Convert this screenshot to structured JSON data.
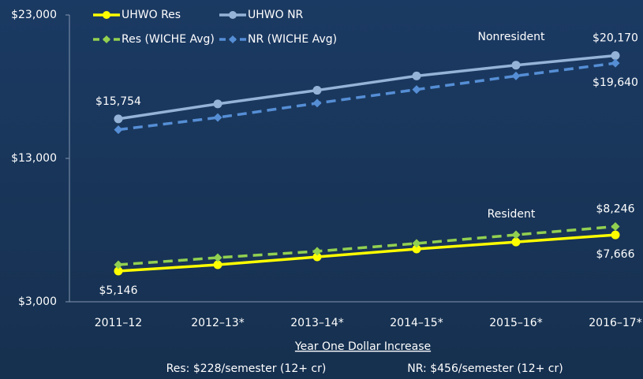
{
  "chart_data": {
    "type": "line",
    "categories": [
      "2011–12",
      "2012–13*",
      "2013–14*",
      "2014–15*",
      "2015–16*",
      "2016–17*"
    ],
    "series": [
      {
        "name": "UHWO Res",
        "color": "#ffff00",
        "dashed": false,
        "marker": "circle",
        "values": [
          5146,
          5580,
          6130,
          6680,
          7170,
          7666
        ],
        "value_labels": [
          "$5,146",
          null,
          null,
          null,
          null,
          "$7,666"
        ]
      },
      {
        "name": "UHWO NR",
        "color": "#95b3d7",
        "dashed": false,
        "marker": "circle",
        "values": [
          15754,
          16800,
          17750,
          18750,
          19500,
          20170
        ],
        "value_labels": [
          "$15,754",
          null,
          null,
          null,
          null,
          "$20,170"
        ]
      },
      {
        "name": "Res (WICHE Avg)",
        "color": "#92d050",
        "dashed": true,
        "marker": "diamond",
        "values": [
          5580,
          6080,
          6520,
          7070,
          7670,
          8246
        ],
        "value_labels": [
          null,
          null,
          null,
          null,
          null,
          "$8,246"
        ]
      },
      {
        "name": "NR (WICHE Avg)",
        "color": "#558ed5",
        "dashed": true,
        "marker": "diamond",
        "values": [
          15000,
          15850,
          16850,
          17800,
          18750,
          19640
        ],
        "value_labels": [
          null,
          null,
          null,
          null,
          null,
          "$19,640"
        ]
      }
    ],
    "ylim": [
      3000,
      23000
    ],
    "yticks": [
      {
        "value": 3000,
        "label": "$3,000"
      },
      {
        "value": 13000,
        "label": "$13,000"
      },
      {
        "value": 23000,
        "label": "$23,000"
      }
    ],
    "annotations": [
      "Nonresident",
      "Resident"
    ],
    "footer_title": "Year One Dollar Increase",
    "footer_notes": [
      "Res: $228/semester (12+ cr)",
      "NR: $456/semester (12+ cr)"
    ]
  }
}
